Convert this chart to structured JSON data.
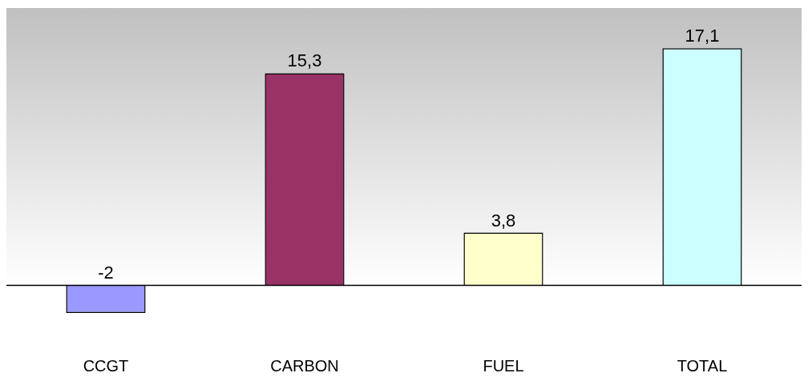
{
  "chart_data": {
    "type": "bar",
    "categories": [
      "CCGT",
      "CARBON",
      "FUEL",
      "TOTAL"
    ],
    "values": [
      -2,
      15.3,
      3.8,
      17.1
    ],
    "colors": [
      "#9999ff",
      "#993366",
      "#ffffcc",
      "#ccffff"
    ],
    "value_labels": [
      "-2",
      "15,3",
      "3,8",
      "17,1"
    ],
    "grid": false,
    "legend": false
  }
}
